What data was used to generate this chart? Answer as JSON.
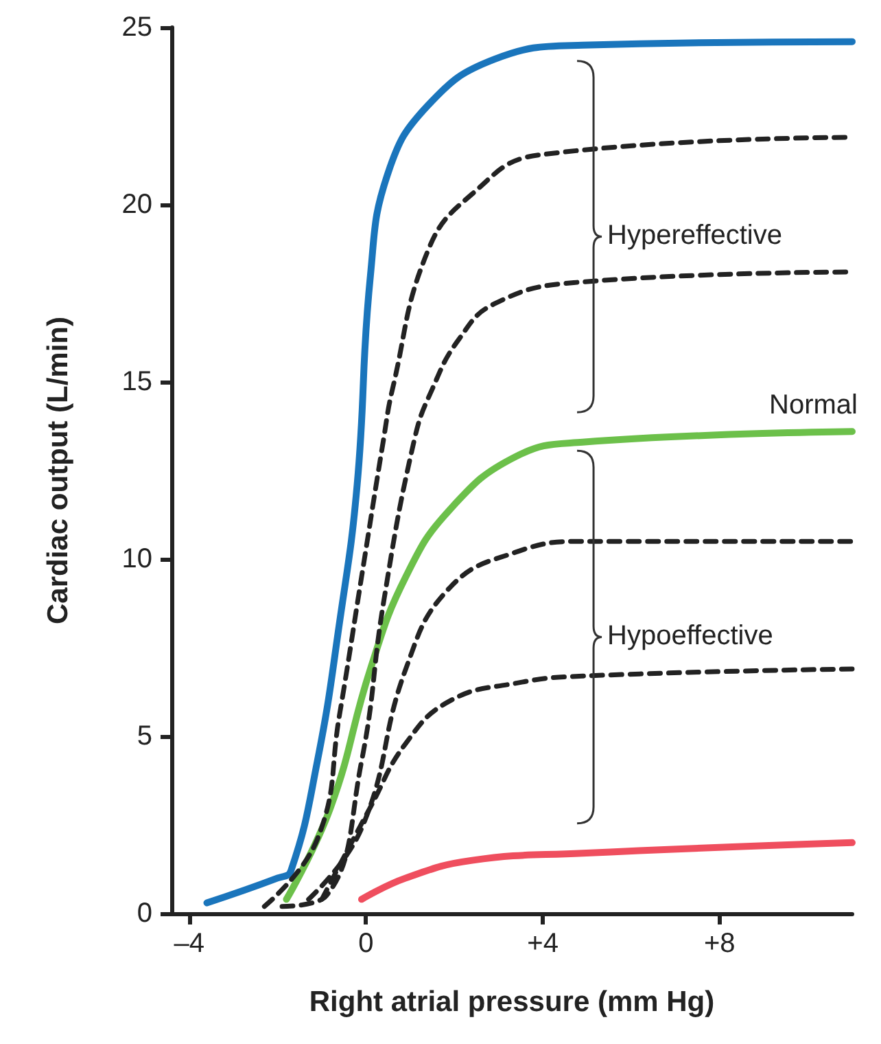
{
  "chart_data": {
    "type": "line",
    "xlabel": "Right atrial pressure (mm Hg)",
    "ylabel": "Cardiac output (L/min)",
    "xlim": [
      -4.4,
      11
    ],
    "ylim": [
      0,
      25
    ],
    "xticks": [
      {
        "value": -4,
        "label": "–4"
      },
      0,
      {
        "value": 4,
        "label": "+4"
      },
      {
        "value": 8,
        "label": "+8"
      }
    ],
    "yticks": [
      0,
      5,
      10,
      15,
      20,
      25
    ],
    "grid": false,
    "legend": false,
    "marker": "none",
    "series": [
      {
        "color": "#1a75bc",
        "line_style": "solid",
        "x": [
          -3.6,
          -2.0,
          -1.7,
          -1.1,
          -0.6,
          -0.2,
          0.1,
          0.5,
          1.4,
          2.9,
          4.9,
          11.0
        ],
        "values": [
          0.3,
          1.0,
          1.2,
          4.3,
          8.2,
          12.1,
          18.0,
          20.9,
          22.8,
          24.1,
          24.5,
          24.6
        ]
      },
      {
        "color": "#222222",
        "line_style": "dashed",
        "x": [
          -2.3,
          -1.1,
          -0.6,
          -0.1,
          0.4,
          0.6,
          1.4,
          2.4,
          3.9,
          11.0
        ],
        "values": [
          0.2,
          2.1,
          5.6,
          9.5,
          13.4,
          14.8,
          18.7,
          20.3,
          21.4,
          21.9
        ]
      },
      {
        "color": "#222222",
        "line_style": "dashed",
        "x": [
          -1.9,
          -0.9,
          -0.1,
          0.4,
          1.1,
          1.5,
          2.1,
          2.9,
          4.7,
          11.0
        ],
        "values": [
          0.2,
          0.5,
          4.3,
          8.8,
          13.4,
          14.8,
          16.2,
          17.2,
          17.8,
          18.1
        ]
      },
      {
        "name": "Normal",
        "color": "#6cc04a",
        "line_style": "solid",
        "x": [
          -1.8,
          -0.8,
          0.1,
          0.9,
          1.9,
          3.4,
          4.9,
          11.0
        ],
        "values": [
          0.4,
          3.0,
          6.9,
          9.5,
          11.4,
          12.9,
          13.3,
          13.6
        ]
      },
      {
        "color": "#222222",
        "line_style": "dashed",
        "x": [
          -1.3,
          -0.1,
          0.9,
          1.9,
          3.4,
          4.9,
          11.0
        ],
        "values": [
          0.4,
          2.4,
          6.9,
          9.2,
          10.2,
          10.5,
          10.5
        ]
      },
      {
        "color": "#222222",
        "line_style": "dashed",
        "x": [
          -1.0,
          0.1,
          0.9,
          1.9,
          3.4,
          4.9,
          11.0
        ],
        "values": [
          0.4,
          3.0,
          4.8,
          6.0,
          6.5,
          6.7,
          6.9
        ]
      },
      {
        "color": "#ef4e5e",
        "line_style": "solid",
        "x": [
          -0.1,
          0.9,
          2.4,
          4.9,
          11.0
        ],
        "values": [
          0.4,
          1.0,
          1.5,
          1.7,
          2.0
        ]
      }
    ],
    "annotations": [
      "Hypereffective",
      "Hypoeffective"
    ]
  }
}
